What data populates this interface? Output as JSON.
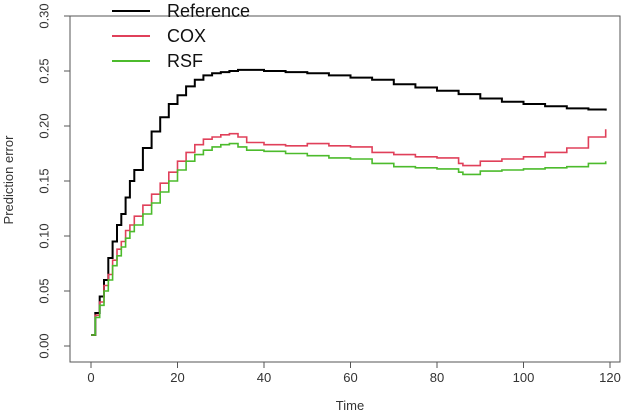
{
  "chart_data": {
    "type": "line",
    "title": "",
    "xlabel": "Time",
    "ylabel": "Prediction error",
    "xlim": [
      0,
      120
    ],
    "ylim": [
      0,
      0.3
    ],
    "x_ticks": [
      0,
      20,
      40,
      60,
      80,
      100,
      120
    ],
    "y_ticks": [
      0.0,
      0.05,
      0.1,
      0.15,
      0.2,
      0.25,
      0.3
    ],
    "y_tick_labels": [
      "0.00",
      "0.05",
      "0.10",
      "0.15",
      "0.20",
      "0.25",
      "0.30"
    ],
    "grid": false,
    "legend_position": "top-left",
    "step": true,
    "series": [
      {
        "name": "Reference",
        "color": "#000000",
        "x": [
          0,
          1,
          2,
          3,
          4,
          5,
          6,
          7,
          8,
          9,
          10,
          12,
          14,
          16,
          18,
          20,
          22,
          24,
          26,
          28,
          30,
          32,
          34,
          36,
          38,
          40,
          45,
          50,
          55,
          60,
          65,
          70,
          75,
          80,
          85,
          90,
          95,
          100,
          105,
          110,
          115,
          119
        ],
        "y": [
          0.01,
          0.03,
          0.045,
          0.06,
          0.08,
          0.095,
          0.11,
          0.12,
          0.135,
          0.15,
          0.16,
          0.18,
          0.195,
          0.208,
          0.22,
          0.228,
          0.236,
          0.242,
          0.246,
          0.248,
          0.249,
          0.25,
          0.251,
          0.251,
          0.251,
          0.25,
          0.249,
          0.248,
          0.246,
          0.244,
          0.242,
          0.238,
          0.235,
          0.232,
          0.229,
          0.225,
          0.222,
          0.22,
          0.218,
          0.216,
          0.215,
          0.214
        ]
      },
      {
        "name": "COX",
        "color": "#e0405a",
        "x": [
          0,
          1,
          2,
          3,
          4,
          5,
          6,
          7,
          8,
          9,
          10,
          12,
          14,
          16,
          18,
          20,
          22,
          24,
          26,
          28,
          30,
          32,
          34,
          36,
          40,
          45,
          50,
          55,
          60,
          65,
          70,
          75,
          80,
          85,
          86,
          90,
          95,
          100,
          105,
          110,
          115,
          119
        ],
        "y": [
          0.01,
          0.028,
          0.04,
          0.055,
          0.065,
          0.078,
          0.088,
          0.095,
          0.105,
          0.11,
          0.118,
          0.128,
          0.138,
          0.148,
          0.158,
          0.168,
          0.176,
          0.183,
          0.188,
          0.19,
          0.192,
          0.193,
          0.19,
          0.185,
          0.183,
          0.182,
          0.184,
          0.182,
          0.181,
          0.176,
          0.174,
          0.172,
          0.171,
          0.166,
          0.164,
          0.168,
          0.17,
          0.172,
          0.176,
          0.18,
          0.19,
          0.197
        ]
      },
      {
        "name": "RSF",
        "color": "#4cbb2c",
        "x": [
          0,
          1,
          2,
          3,
          4,
          5,
          6,
          7,
          8,
          9,
          10,
          12,
          14,
          16,
          18,
          20,
          22,
          24,
          26,
          28,
          30,
          32,
          34,
          36,
          40,
          45,
          50,
          55,
          60,
          65,
          70,
          75,
          80,
          85,
          86,
          90,
          95,
          100,
          105,
          110,
          115,
          119
        ],
        "y": [
          0.01,
          0.026,
          0.037,
          0.05,
          0.06,
          0.073,
          0.082,
          0.09,
          0.098,
          0.104,
          0.11,
          0.12,
          0.13,
          0.14,
          0.15,
          0.16,
          0.168,
          0.174,
          0.178,
          0.181,
          0.183,
          0.184,
          0.181,
          0.178,
          0.177,
          0.175,
          0.173,
          0.171,
          0.17,
          0.166,
          0.163,
          0.162,
          0.161,
          0.158,
          0.156,
          0.159,
          0.16,
          0.161,
          0.162,
          0.163,
          0.166,
          0.168
        ]
      }
    ]
  }
}
